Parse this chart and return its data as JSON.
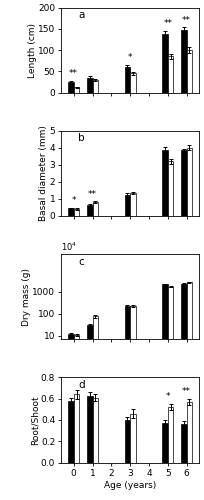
{
  "panel_a": {
    "label": "a",
    "ylabel": "Length (cm)",
    "ylim": [
      0,
      200
    ],
    "yticks": [
      0,
      50,
      100,
      150,
      200
    ],
    "ages": [
      0,
      1,
      3,
      5,
      6
    ],
    "black_means": [
      25,
      35,
      60,
      137,
      148
    ],
    "black_se": [
      3,
      3,
      5,
      8,
      6
    ],
    "white_means": [
      12,
      30,
      45,
      85,
      100
    ],
    "white_se": [
      2,
      3,
      4,
      5,
      7
    ],
    "sig": [
      "**",
      "",
      "*",
      "**",
      "**"
    ],
    "log": false
  },
  "panel_b": {
    "label": "b",
    "ylabel": "Basal diameter (mm)",
    "ylim": [
      0,
      5
    ],
    "yticks": [
      0,
      1,
      2,
      3,
      4,
      5
    ],
    "ages": [
      0,
      1,
      3,
      5,
      6
    ],
    "black_means": [
      0.45,
      0.65,
      1.25,
      3.9,
      3.85
    ],
    "black_se": [
      0.04,
      0.05,
      0.08,
      0.12,
      0.1
    ],
    "white_means": [
      0.4,
      0.8,
      1.35,
      3.2,
      4.0
    ],
    "white_se": [
      0.04,
      0.06,
      0.08,
      0.15,
      0.15
    ],
    "sig": [
      "*",
      "**",
      "",
      "",
      ""
    ],
    "log": false
  },
  "panel_c": {
    "label": "c",
    "ylabel": "Dry mass (g)",
    "log": true,
    "ylim": [
      7,
      50000
    ],
    "yticks": [
      10,
      100,
      1000
    ],
    "ytick_labels": [
      "10",
      "100",
      "1000"
    ],
    "top_label": "10⁴",
    "ages": [
      0,
      1,
      3,
      5,
      6
    ],
    "black_means": [
      12,
      32,
      220,
      2200,
      2300
    ],
    "black_se": [
      1,
      3,
      18,
      120,
      130
    ],
    "white_means": [
      11,
      75,
      220,
      1700,
      2600
    ],
    "white_se": [
      1,
      10,
      18,
      120,
      180
    ],
    "sig": [
      "",
      "",
      "",
      "",
      ""
    ]
  },
  "panel_d": {
    "label": "d",
    "ylabel": "Root/Shoot",
    "ylim": [
      0,
      0.8
    ],
    "yticks": [
      0,
      0.2,
      0.4,
      0.6,
      0.8
    ],
    "ages": [
      0,
      1,
      3,
      5,
      6
    ],
    "black_means": [
      0.58,
      0.63,
      0.4,
      0.37,
      0.36
    ],
    "black_se": [
      0.03,
      0.03,
      0.03,
      0.03,
      0.03
    ],
    "white_means": [
      0.64,
      0.61,
      0.46,
      0.52,
      0.57
    ],
    "white_se": [
      0.04,
      0.03,
      0.04,
      0.03,
      0.03
    ],
    "sig": [
      "",
      "",
      "",
      "*",
      "**"
    ],
    "log": false
  },
  "xlabel": "Age (years)",
  "xticks": [
    0,
    1,
    2,
    3,
    4,
    5,
    6
  ],
  "bar_width": 0.3,
  "black_color": "#000000",
  "white_color": "#ffffff",
  "fontsize": 6.5,
  "sig_fontsize": 6.5
}
